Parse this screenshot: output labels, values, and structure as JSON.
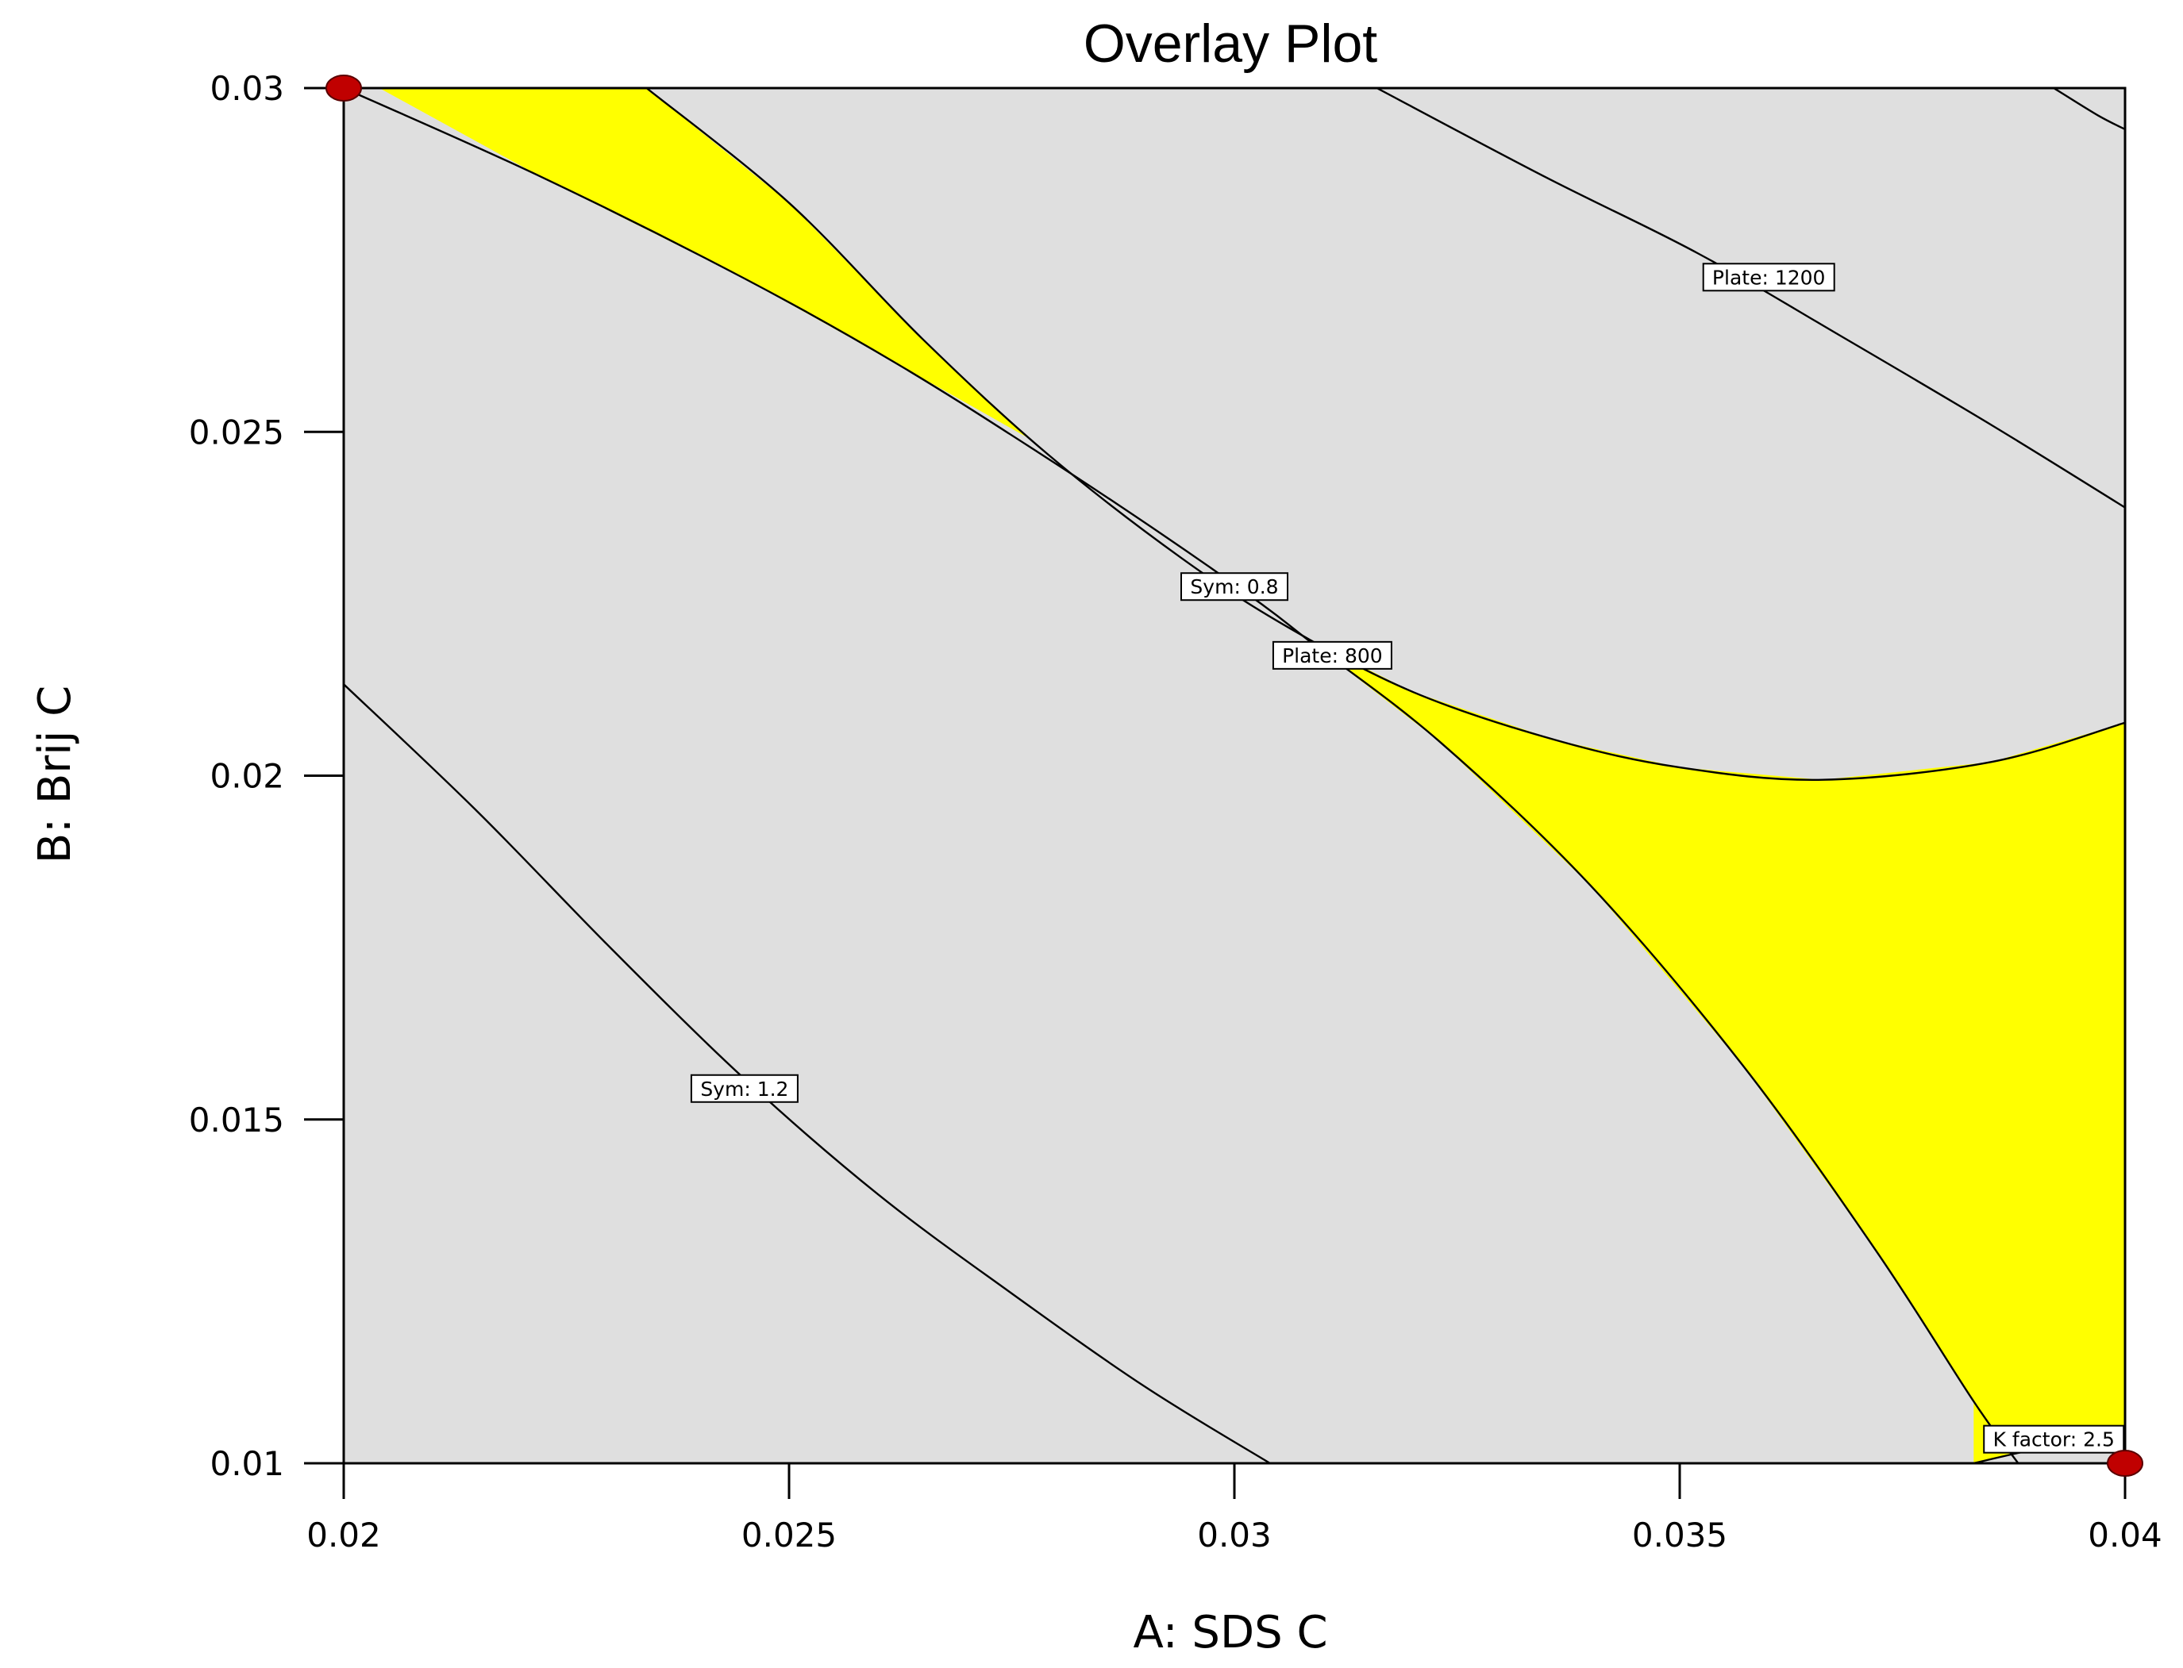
{
  "chart_data": {
    "type": "contour",
    "title": "Overlay Plot",
    "xlabel": "A: SDS C",
    "ylabel": "B: Brij C",
    "xlim": [
      0.02,
      0.04
    ],
    "ylim": [
      0.01,
      0.03
    ],
    "xticks": [
      0.02,
      0.025,
      0.03,
      0.035,
      0.04
    ],
    "yticks": [
      0.01,
      0.015,
      0.02,
      0.025,
      0.03
    ],
    "xtick_labels": [
      "0.02",
      "0.025",
      "0.03",
      "0.035",
      "0.04"
    ],
    "ytick_labels": [
      "0.01",
      "0.015",
      "0.02",
      "0.025",
      "0.03"
    ],
    "colors": {
      "feasible_region": "#ffff00",
      "background_region": "#dfdfdf",
      "contour_line": "#000000",
      "design_point": "#c00000"
    },
    "design_points": [
      {
        "x": 0.02,
        "y": 0.03
      },
      {
        "x": 0.04,
        "y": 0.01
      }
    ],
    "contours": [
      {
        "label": "Plate: 1200",
        "label_at": {
          "x": 0.036,
          "y": 0.02725
        },
        "points": [
          [
            0.0316,
            0.03
          ],
          [
            0.0335,
            0.0287
          ],
          [
            0.0352,
            0.0276
          ],
          [
            0.0368,
            0.0264
          ],
          [
            0.0385,
            0.0251
          ],
          [
            0.04,
            0.0239
          ]
        ]
      },
      {
        "label": "Plate: 1200",
        "show_label": false,
        "points": [
          [
            0.0392,
            0.03
          ],
          [
            0.0397,
            0.0296
          ],
          [
            0.04,
            0.0294
          ]
        ]
      },
      {
        "label": "Sym: 0.8",
        "label_at": {
          "x": 0.03,
          "y": 0.02275
        },
        "points": [
          [
            0.02,
            0.03
          ],
          [
            0.0222,
            0.02872
          ],
          [
            0.0245,
            0.02723
          ],
          [
            0.0262,
            0.026
          ],
          [
            0.0278,
            0.0247
          ],
          [
            0.0292,
            0.0235
          ],
          [
            0.0303,
            0.0225
          ],
          [
            0.0309,
            0.0219
          ],
          [
            0.0323,
            0.0205
          ],
          [
            0.034,
            0.0184
          ],
          [
            0.0357,
            0.0158
          ],
          [
            0.0372,
            0.0131
          ],
          [
            0.0383,
            0.0109
          ],
          [
            0.0388,
            0.01
          ]
        ]
      },
      {
        "label": "Plate: 800",
        "label_at": {
          "x": 0.0311,
          "y": 0.02175
        },
        "points": [
          [
            0.0234,
            0.03
          ],
          [
            0.025,
            0.02833
          ],
          [
            0.0265,
            0.02635
          ],
          [
            0.0279,
            0.02468
          ],
          [
            0.0294,
            0.02317
          ],
          [
            0.0306,
            0.02216
          ],
          [
            0.032,
            0.02122
          ],
          [
            0.0336,
            0.02052
          ],
          [
            0.035,
            0.02012
          ],
          [
            0.0366,
            0.01994
          ],
          [
            0.0385,
            0.0202
          ],
          [
            0.04,
            0.02077
          ]
        ]
      },
      {
        "label": "Sym: 1.2",
        "label_at": {
          "x": 0.0245,
          "y": 0.01545
        },
        "points": [
          [
            0.02,
            0.02133
          ],
          [
            0.0215,
            0.01948
          ],
          [
            0.023,
            0.01749
          ],
          [
            0.0245,
            0.01559
          ],
          [
            0.026,
            0.01391
          ],
          [
            0.0275,
            0.01247
          ],
          [
            0.029,
            0.01111
          ],
          [
            0.0304,
            0.01
          ]
        ]
      },
      {
        "label": "K factor: 2.5",
        "label_at": {
          "x": 0.0392,
          "y": 0.01035
        },
        "points": [
          [
            0.0383,
            0.01
          ],
          [
            0.0388,
            0.01015
          ],
          [
            0.0393,
            0.01028
          ],
          [
            0.0398,
            0.0104
          ],
          [
            0.04,
            0.0105
          ]
        ]
      }
    ],
    "feasible_regions": [
      {
        "name": "upper-left",
        "points": [
          [
            0.0204,
            0.03
          ],
          [
            0.0234,
            0.03
          ],
          [
            0.025,
            0.02833
          ],
          [
            0.0265,
            0.02635
          ],
          [
            0.0277,
            0.0249
          ],
          [
            0.0262,
            0.026
          ],
          [
            0.0245,
            0.02723
          ],
          [
            0.0222,
            0.02872
          ]
        ]
      },
      {
        "name": "lower-right",
        "points": [
          [
            0.0308,
            0.022
          ],
          [
            0.032,
            0.02122
          ],
          [
            0.0336,
            0.02052
          ],
          [
            0.035,
            0.02012
          ],
          [
            0.0366,
            0.01994
          ],
          [
            0.0385,
            0.0202
          ],
          [
            0.04,
            0.02077
          ],
          [
            0.04,
            0.0105
          ],
          [
            0.0398,
            0.0104
          ],
          [
            0.0393,
            0.01028
          ],
          [
            0.0388,
            0.01015
          ],
          [
            0.0383,
            0.01
          ],
          [
            0.0383,
            0.0109
          ],
          [
            0.0372,
            0.0131
          ],
          [
            0.0357,
            0.0158
          ],
          [
            0.034,
            0.0184
          ],
          [
            0.0323,
            0.0205
          ],
          [
            0.0309,
            0.0219
          ]
        ]
      }
    ]
  }
}
